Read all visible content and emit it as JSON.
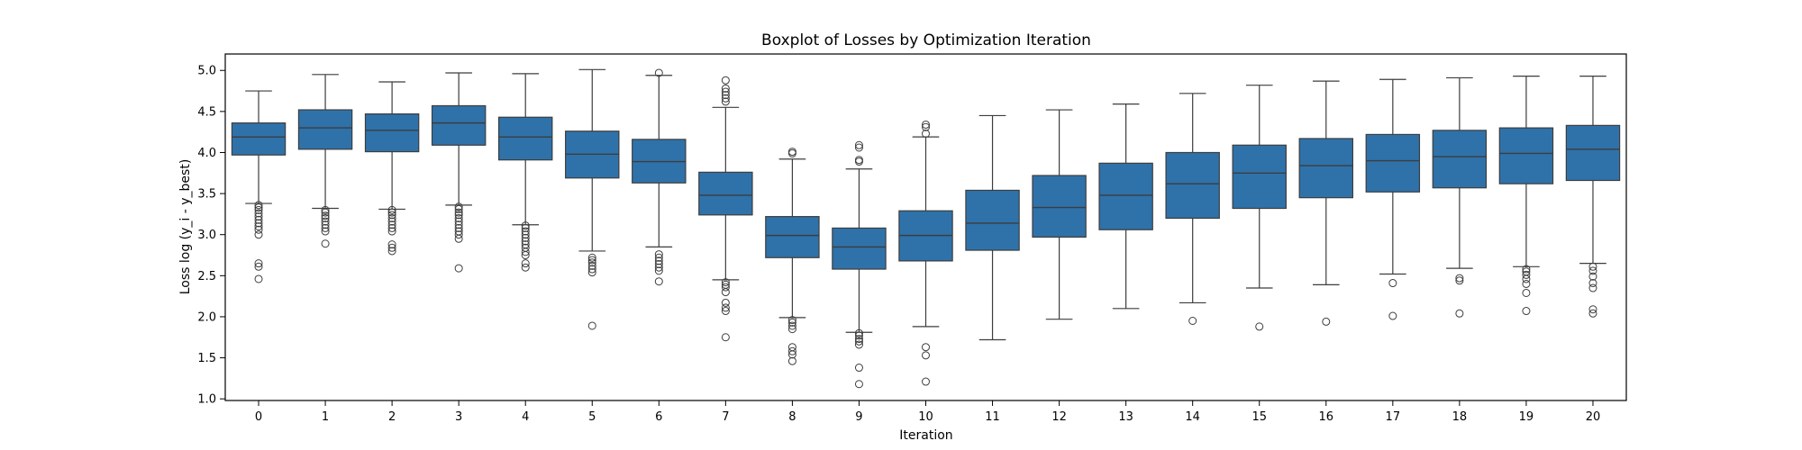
{
  "chart_data": {
    "type": "boxplot",
    "title": "Boxplot of Losses by Optimization Iteration",
    "xlabel": "Iteration",
    "ylabel": "Loss log (y_i - y_best)",
    "ylim": [
      0.98,
      5.2
    ],
    "yticks": [
      "1.0",
      "1.5",
      "2.0",
      "2.5",
      "3.0",
      "3.5",
      "4.0",
      "4.5",
      "5.0"
    ],
    "categories": [
      "0",
      "1",
      "2",
      "3",
      "4",
      "5",
      "6",
      "7",
      "8",
      "9",
      "10",
      "11",
      "12",
      "13",
      "14",
      "15",
      "16",
      "17",
      "18",
      "19",
      "20"
    ],
    "box_color": "#2f72aa",
    "boxes": [
      {
        "category": "0",
        "whisker_low": 3.38,
        "q1": 3.97,
        "median": 4.19,
        "q3": 4.36,
        "whisker_high": 4.75,
        "outliers": [
          3.36,
          3.33,
          3.3,
          3.26,
          3.22,
          3.18,
          3.14,
          3.1,
          3.06,
          3.0,
          2.65,
          2.61,
          2.46
        ]
      },
      {
        "category": "1",
        "whisker_low": 3.32,
        "q1": 4.04,
        "median": 4.3,
        "q3": 4.52,
        "whisker_high": 4.95,
        "outliers": [
          3.3,
          3.27,
          3.23,
          3.2,
          3.16,
          3.12,
          3.08,
          3.04,
          2.89
        ]
      },
      {
        "category": "2",
        "whisker_low": 3.31,
        "q1": 4.01,
        "median": 4.27,
        "q3": 4.47,
        "whisker_high": 4.86,
        "outliers": [
          3.3,
          3.27,
          3.24,
          3.2,
          3.16,
          3.12,
          3.08,
          3.04,
          2.88,
          2.84,
          2.8
        ]
      },
      {
        "category": "3",
        "whisker_low": 3.36,
        "q1": 4.09,
        "median": 4.36,
        "q3": 4.57,
        "whisker_high": 4.97,
        "outliers": [
          3.34,
          3.31,
          3.27,
          3.24,
          3.2,
          3.16,
          3.12,
          3.08,
          3.04,
          3.0,
          2.95,
          2.59
        ]
      },
      {
        "category": "4",
        "whisker_low": 3.12,
        "q1": 3.91,
        "median": 4.19,
        "q3": 4.43,
        "whisker_high": 4.96,
        "outliers": [
          3.11,
          3.08,
          3.04,
          3.0,
          2.96,
          2.92,
          2.88,
          2.84,
          2.79,
          2.75,
          2.65,
          2.6
        ]
      },
      {
        "category": "5",
        "whisker_low": 2.8,
        "q1": 3.69,
        "median": 3.98,
        "q3": 4.26,
        "whisker_high": 5.01,
        "outliers": [
          2.72,
          2.69,
          2.66,
          2.62,
          2.58,
          2.54,
          1.89
        ]
      },
      {
        "category": "6",
        "whisker_low": 2.85,
        "q1": 3.63,
        "median": 3.89,
        "q3": 4.16,
        "whisker_high": 4.94,
        "outliers": [
          4.97,
          2.76,
          2.72,
          2.68,
          2.64,
          2.6,
          2.56,
          2.43
        ]
      },
      {
        "category": "7",
        "whisker_low": 2.45,
        "q1": 3.24,
        "median": 3.48,
        "q3": 3.76,
        "whisker_high": 4.55,
        "outliers": [
          4.88,
          4.78,
          4.74,
          4.7,
          4.66,
          4.62,
          2.42,
          2.39,
          2.36,
          2.3,
          2.17,
          2.11,
          2.07,
          1.75
        ]
      },
      {
        "category": "8",
        "whisker_low": 1.99,
        "q1": 2.72,
        "median": 2.99,
        "q3": 3.22,
        "whisker_high": 3.92,
        "outliers": [
          4.01,
          3.99,
          1.96,
          1.93,
          1.89,
          1.85,
          1.63,
          1.58,
          1.54,
          1.46
        ]
      },
      {
        "category": "9",
        "whisker_low": 1.81,
        "q1": 2.58,
        "median": 2.85,
        "q3": 3.08,
        "whisker_high": 3.8,
        "outliers": [
          4.09,
          4.06,
          3.91,
          3.89,
          1.8,
          1.77,
          1.73,
          1.7,
          1.66,
          1.38,
          1.18
        ]
      },
      {
        "category": "10",
        "whisker_low": 1.88,
        "q1": 2.68,
        "median": 2.99,
        "q3": 3.29,
        "whisker_high": 4.19,
        "outliers": [
          4.34,
          4.31,
          4.23,
          1.63,
          1.53,
          1.21
        ]
      },
      {
        "category": "11",
        "whisker_low": 1.72,
        "q1": 2.81,
        "median": 3.14,
        "q3": 3.54,
        "whisker_high": 4.45,
        "outliers": []
      },
      {
        "category": "12",
        "whisker_low": 1.97,
        "q1": 2.97,
        "median": 3.33,
        "q3": 3.72,
        "whisker_high": 4.52,
        "outliers": []
      },
      {
        "category": "13",
        "whisker_low": 2.1,
        "q1": 3.06,
        "median": 3.48,
        "q3": 3.87,
        "whisker_high": 4.59,
        "outliers": []
      },
      {
        "category": "14",
        "whisker_low": 2.17,
        "q1": 3.2,
        "median": 3.62,
        "q3": 4.0,
        "whisker_high": 4.72,
        "outliers": [
          1.95
        ]
      },
      {
        "category": "15",
        "whisker_low": 2.35,
        "q1": 3.32,
        "median": 3.75,
        "q3": 4.09,
        "whisker_high": 4.82,
        "outliers": [
          1.88
        ]
      },
      {
        "category": "16",
        "whisker_low": 2.39,
        "q1": 3.45,
        "median": 3.84,
        "q3": 4.17,
        "whisker_high": 4.87,
        "outliers": [
          1.94
        ]
      },
      {
        "category": "17",
        "whisker_low": 2.52,
        "q1": 3.52,
        "median": 3.9,
        "q3": 4.22,
        "whisker_high": 4.89,
        "outliers": [
          2.41,
          2.01
        ]
      },
      {
        "category": "18",
        "whisker_low": 2.59,
        "q1": 3.57,
        "median": 3.95,
        "q3": 4.27,
        "whisker_high": 4.91,
        "outliers": [
          2.47,
          2.44,
          2.04
        ]
      },
      {
        "category": "19",
        "whisker_low": 2.61,
        "q1": 3.62,
        "median": 3.99,
        "q3": 4.3,
        "whisker_high": 4.93,
        "outliers": [
          2.58,
          2.55,
          2.51,
          2.46,
          2.4,
          2.29,
          2.07
        ]
      },
      {
        "category": "20",
        "whisker_low": 2.65,
        "q1": 3.66,
        "median": 4.04,
        "q3": 4.33,
        "whisker_high": 4.93,
        "outliers": [
          2.61,
          2.56,
          2.49,
          2.41,
          2.35,
          2.09,
          2.04
        ]
      }
    ],
    "grid": false,
    "legend": "none"
  }
}
